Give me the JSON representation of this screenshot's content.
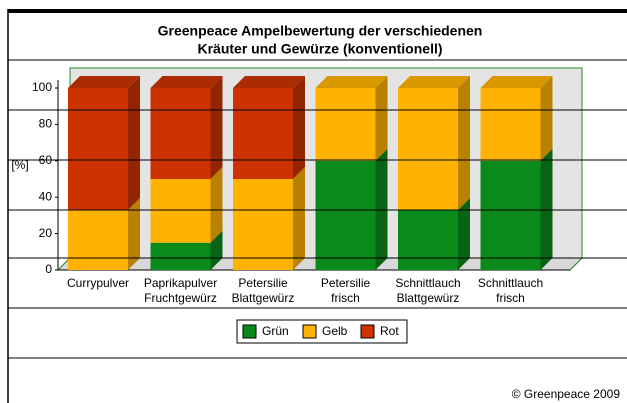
{
  "chart_data": {
    "type": "stacked_bar",
    "title": [
      "Greenpeace Ampelbewertung der verschiedenen",
      "Kräuter und Gewürze (konventionell)"
    ],
    "y_label": "[%]",
    "categories": [
      [
        "Currypulver"
      ],
      [
        "Paprikapulver",
        "Fruchtgewürz"
      ],
      [
        "Petersilie",
        "Blattgewürz"
      ],
      [
        "Petersilie",
        "frisch"
      ],
      [
        "Schnittlauch",
        "Blattgewürz"
      ],
      [
        "Schnittlauch",
        "frisch"
      ]
    ],
    "series": [
      {
        "name": "Grün",
        "color": "#0b8a1c",
        "values": [
          0,
          15,
          0,
          60,
          33,
          60
        ]
      },
      {
        "name": "Gelb",
        "color": "#ffb300",
        "values": [
          33,
          35,
          50,
          40,
          67,
          40
        ]
      },
      {
        "name": "Rot",
        "color": "#cc3300",
        "values": [
          67,
          50,
          50,
          0,
          0,
          0
        ]
      }
    ],
    "ylim": [
      0,
      100
    ],
    "yticks": [
      0,
      20,
      40,
      60,
      80,
      100
    ],
    "grid": false,
    "legend": "bottom",
    "footer": "© Greenpeace 2009"
  }
}
